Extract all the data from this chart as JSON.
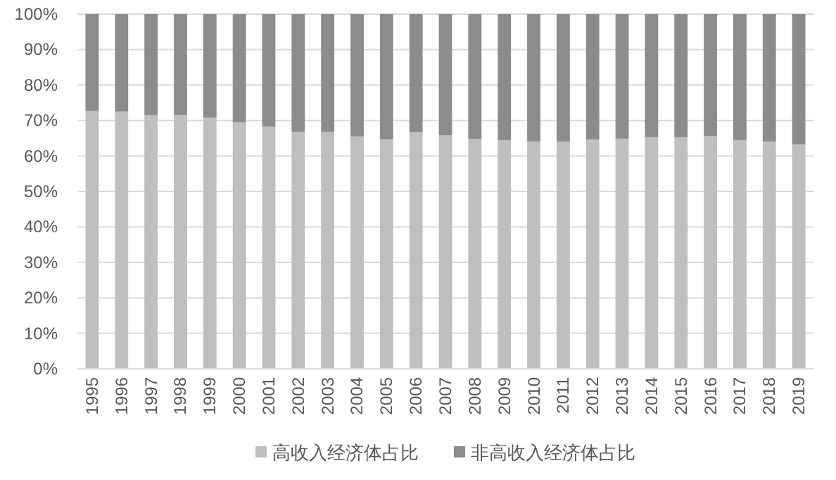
{
  "chart_data": {
    "type": "bar",
    "stacked": true,
    "categories": [
      "1995",
      "1996",
      "1997",
      "1998",
      "1999",
      "2000",
      "2001",
      "2002",
      "2003",
      "2004",
      "2005",
      "2006",
      "2007",
      "2008",
      "2009",
      "2010",
      "2011",
      "2012",
      "2013",
      "2014",
      "2015",
      "2016",
      "2017",
      "2018",
      "2019"
    ],
    "series": [
      {
        "name": "高收入经济体占比",
        "color": "#bfbfbf",
        "values": [
          72.7,
          72.5,
          71.5,
          71.6,
          70.8,
          69.5,
          68.3,
          66.8,
          66.8,
          65.5,
          64.7,
          66.7,
          65.8,
          64.8,
          64.5,
          64.1,
          64.0,
          64.6,
          64.9,
          65.3,
          65.3,
          65.6,
          64.5,
          64.0,
          63.2
        ]
      },
      {
        "name": "非高收入经济体占比",
        "color": "#8c8c8c",
        "values": [
          27.3,
          27.5,
          28.5,
          28.4,
          29.2,
          30.5,
          31.7,
          33.2,
          33.2,
          34.5,
          35.3,
          33.3,
          34.2,
          35.2,
          35.5,
          35.9,
          36.0,
          35.4,
          35.1,
          34.7,
          34.7,
          34.4,
          35.5,
          36.0,
          36.8
        ]
      }
    ],
    "ylim": [
      0,
      100
    ],
    "yticks": [
      {
        "value": 0,
        "label": "0%"
      },
      {
        "value": 10,
        "label": "10%"
      },
      {
        "value": 20,
        "label": "20%"
      },
      {
        "value": 30,
        "label": "30%"
      },
      {
        "value": 40,
        "label": "40%"
      },
      {
        "value": 50,
        "label": "50%"
      },
      {
        "value": 60,
        "label": "60%"
      },
      {
        "value": 70,
        "label": "70%"
      },
      {
        "value": 80,
        "label": "80%"
      },
      {
        "value": 90,
        "label": "90%"
      },
      {
        "value": 100,
        "label": "100%"
      }
    ],
    "grid": "y",
    "legend": "bottom"
  }
}
